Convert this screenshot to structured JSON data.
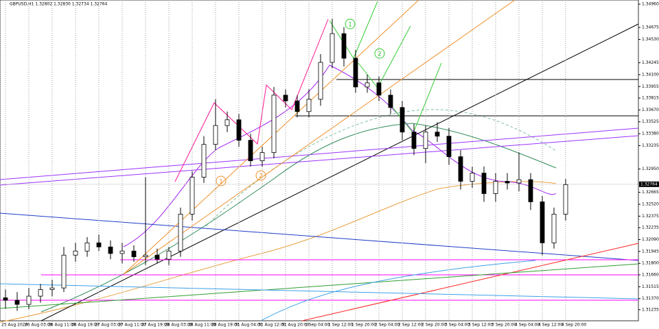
{
  "chart_data": {
    "type": "candlestick",
    "title": "GBPUSD,H1  1.32802 1.32830 1.32734 1.32764",
    "categories": [
      "25 Aug 2020",
      null,
      "26 Aug 03:00",
      null,
      "26 Aug 11:00",
      null,
      "26 Aug 19:00",
      null,
      "27 Aug 03:00",
      null,
      "27 Aug 11:00",
      null,
      "27 Aug 19:00",
      null,
      "28 Aug 03:00",
      null,
      "28 Aug 11:00",
      null,
      "28 Aug 19:00",
      null,
      "31 Aug 04:00",
      null,
      "31 Aug 12:00",
      null,
      "31 Aug 20:00",
      null,
      "1 Sep 04:00",
      null,
      "1 Sep 12:00",
      null,
      "1 Sep 20:00",
      null,
      "2 Sep 04:00",
      null,
      "2 Sep 12:00",
      null,
      "2 Sep 20:00",
      null,
      "3 Sep 04:00",
      null,
      "3 Sep 12:00",
      null,
      "3 Sep 20:00",
      null,
      "4 Sep 04:00",
      null,
      "4 Sep 12:00",
      null,
      "4 Sep 20:00"
    ],
    "open": [
      1.3138,
      1.3135,
      1.313,
      1.314,
      1.3148,
      1.315,
      1.319,
      1.3195,
      1.3205,
      1.32,
      1.3192,
      1.3195,
      1.3188,
      1.319,
      1.3185,
      1.3195,
      1.324,
      1.3285,
      1.3325,
      1.3348,
      1.3355,
      1.333,
      1.3305,
      1.3315,
      1.3385,
      1.3378,
      1.3365,
      1.338,
      1.3425,
      1.346,
      1.343,
      1.3395,
      1.34,
      1.3385,
      1.337,
      1.334,
      1.332,
      1.334,
      1.3335,
      1.331,
      1.328,
      1.329,
      1.3265,
      1.328,
      1.3278,
      1.3282,
      1.3255,
      1.3205,
      1.324
    ],
    "high": [
      1.3148,
      1.3145,
      1.315,
      1.3155,
      1.316,
      1.32,
      1.3205,
      1.3212,
      1.3215,
      1.3208,
      1.3205,
      1.3202,
      1.3285,
      1.3198,
      1.32,
      1.3248,
      1.3292,
      1.3335,
      1.338,
      1.3365,
      1.3362,
      1.3338,
      1.3322,
      1.3395,
      1.3392,
      1.3385,
      1.3392,
      1.3435,
      1.3478,
      1.3468,
      1.344,
      1.341,
      1.3408,
      1.3392,
      1.3378,
      1.335,
      1.3348,
      1.3352,
      1.3345,
      1.3318,
      1.3298,
      1.3298,
      1.329,
      1.329,
      1.3315,
      1.329,
      1.3262,
      1.3248,
      1.3283
    ],
    "low": [
      1.3125,
      1.3122,
      1.3124,
      1.3132,
      1.314,
      1.3145,
      1.3182,
      1.3188,
      1.3195,
      1.3185,
      1.318,
      1.3182,
      1.3178,
      1.318,
      1.3178,
      1.3188,
      1.3232,
      1.3278,
      1.3318,
      1.334,
      1.3322,
      1.3298,
      1.3298,
      1.3308,
      1.337,
      1.3358,
      1.3358,
      1.3372,
      1.3418,
      1.342,
      1.3388,
      1.3388,
      1.3378,
      1.3362,
      1.333,
      1.3312,
      1.3302,
      1.3328,
      1.33,
      1.327,
      1.3272,
      1.3255,
      1.3255,
      1.327,
      1.3268,
      1.3245,
      1.319,
      1.3198,
      1.3232
    ],
    "close": [
      1.3135,
      1.313,
      1.314,
      1.3148,
      1.315,
      1.319,
      1.3195,
      1.3205,
      1.32,
      1.3192,
      1.3195,
      1.3188,
      1.319,
      1.3185,
      1.3195,
      1.324,
      1.3285,
      1.3325,
      1.3348,
      1.3355,
      1.333,
      1.3305,
      1.3315,
      1.3385,
      1.3378,
      1.3365,
      1.338,
      1.3425,
      1.346,
      1.343,
      1.3395,
      1.34,
      1.3385,
      1.337,
      1.334,
      1.332,
      1.334,
      1.3335,
      1.331,
      1.328,
      1.329,
      1.3265,
      1.328,
      1.3278,
      1.3282,
      1.3255,
      1.3205,
      1.324,
      1.3276
    ],
    "ylim": [
      1.311,
      1.3501
    ],
    "yticks": [
      {
        "value": 1.3496,
        "label": "1.34960"
      },
      {
        "value": 1.34675,
        "label": "1.34675"
      },
      {
        "value": 1.3453,
        "label": "1.34530"
      },
      {
        "value": 1.34245,
        "label": "1.34245"
      },
      {
        "value": 1.341,
        "label": "1.34100"
      },
      {
        "value": 1.33955,
        "label": "1.33955"
      },
      {
        "value": 1.33815,
        "label": "1.33815"
      },
      {
        "value": 1.3367,
        "label": "1.33670"
      },
      {
        "value": 1.33525,
        "label": "1.33525"
      },
      {
        "value": 1.3338,
        "label": "1.33380"
      },
      {
        "value": 1.33235,
        "label": "1.33235"
      },
      {
        "value": 1.3295,
        "label": "1.32950"
      },
      {
        "value": 1.32665,
        "label": "1.32665"
      },
      {
        "value": 1.3252,
        "label": "1.32520"
      },
      {
        "value": 1.32375,
        "label": "1.32375"
      },
      {
        "value": 1.32235,
        "label": "1.32235"
      },
      {
        "value": 1.3209,
        "label": "1.32090"
      },
      {
        "value": 1.31945,
        "label": "1.31945"
      },
      {
        "value": 1.318,
        "label": "1.31800"
      },
      {
        "value": 1.3166,
        "label": "1.31660"
      },
      {
        "value": 1.31515,
        "label": "1.31515"
      },
      {
        "value": 1.3137,
        "label": "1.31370"
      },
      {
        "value": 1.31235,
        "label": "1.31235"
      }
    ],
    "last_price": {
      "value": 1.32764,
      "label": "1.32764"
    },
    "annotations": [
      "1",
      "2",
      "1",
      "2"
    ]
  }
}
